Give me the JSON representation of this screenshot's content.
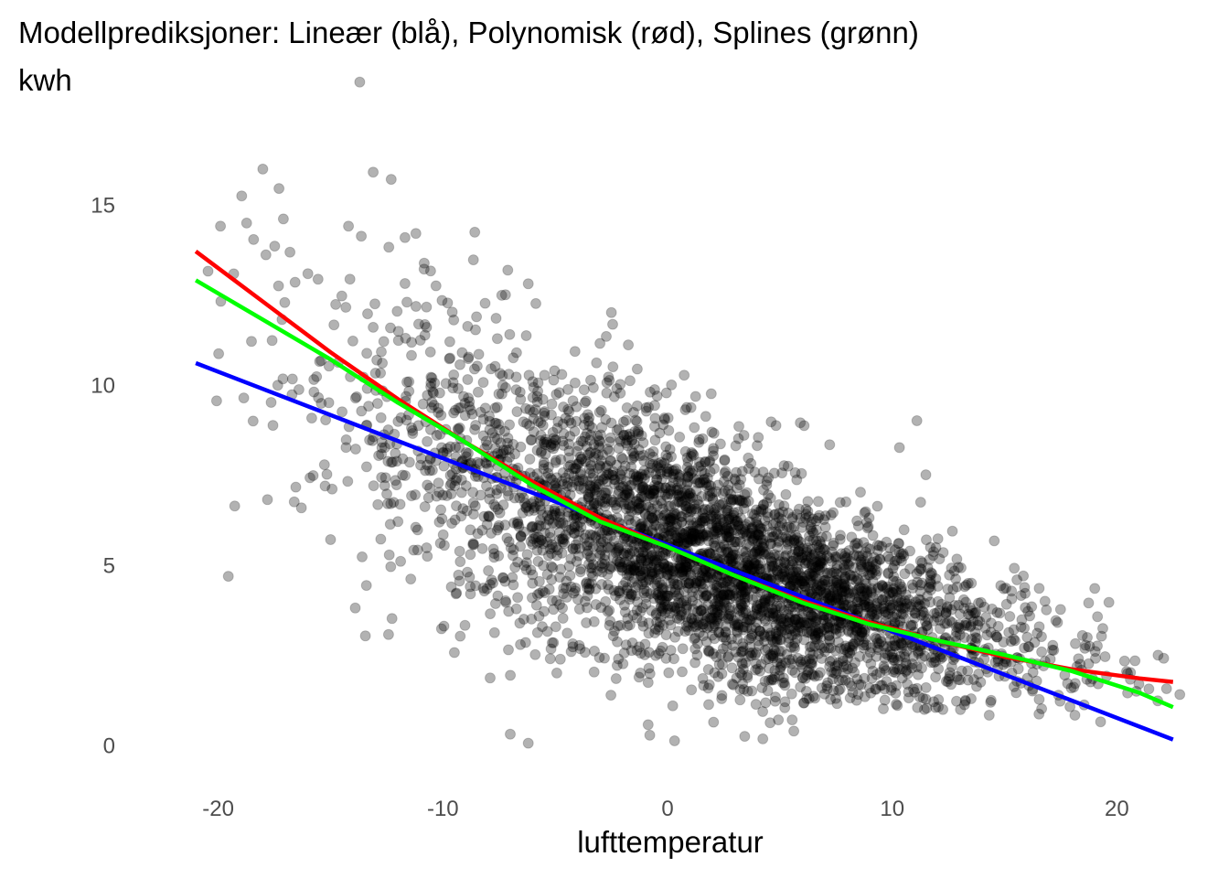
{
  "chart_data": {
    "type": "scatter",
    "title": "Modellprediksjoner: Lineær (blå), Polynomisk (rød), Splines (grønn)",
    "xlabel": "lufttemperatur",
    "ylabel": "kwh",
    "xlim": [
      -23.2,
      23.2
    ],
    "ylim": [
      -0.9,
      18.9
    ],
    "x_ticks": [
      -20,
      -10,
      0,
      10,
      20
    ],
    "y_ticks": [
      0,
      5,
      10,
      15
    ],
    "grid": false,
    "point_color": "#000000",
    "point_alpha": 0.3,
    "scatter_notable_points": [
      {
        "x": -13.7,
        "y": 18.4
      },
      {
        "x": -13.1,
        "y": 15.9
      },
      {
        "x": -12.3,
        "y": 15.7
      },
      {
        "x": -14.2,
        "y": 14.4
      },
      {
        "x": -17.1,
        "y": 14.6
      },
      {
        "x": -19.9,
        "y": 14.4
      },
      {
        "x": -11.2,
        "y": 14.2
      },
      {
        "x": -15.0,
        "y": 5.7
      },
      {
        "x": -13.9,
        "y": 3.8
      },
      {
        "x": -12.0,
        "y": 6.2
      },
      {
        "x": -7.0,
        "y": 0.3
      },
      {
        "x": -6.2,
        "y": 0.05
      },
      {
        "x": -6.2,
        "y": 12.8
      },
      {
        "x": -2.5,
        "y": 12.0
      },
      {
        "x": 11.1,
        "y": 9.0
      },
      {
        "x": 11.5,
        "y": 7.5
      },
      {
        "x": 22.8,
        "y": 1.4
      }
    ],
    "point_cloud": {
      "x_range": [
        -21,
        22.8
      ],
      "fit": "linear",
      "slope": -0.238,
      "intercept": 5.55,
      "spread": 1.6,
      "count": 4000
    },
    "series": [
      {
        "name": "Lineær",
        "color": "#0000ff",
        "x": [
          -21,
          22.5
        ],
        "y": [
          10.6,
          0.15
        ]
      },
      {
        "name": "Polynomisk",
        "color": "#ff0000",
        "x": [
          -21,
          -18,
          -15,
          -12,
          -9,
          -6,
          -3,
          0,
          3,
          6,
          9,
          12,
          15,
          18,
          21,
          22.5
        ],
        "y": [
          13.7,
          12.3,
          10.9,
          9.6,
          8.4,
          7.3,
          6.3,
          5.5,
          4.7,
          4.0,
          3.4,
          2.9,
          2.45,
          2.1,
          1.85,
          1.75
        ]
      },
      {
        "name": "Splines",
        "color": "#00ff00",
        "x": [
          -21,
          -18,
          -15,
          -12,
          -9,
          -6,
          -3,
          0,
          3,
          6,
          9,
          12,
          15,
          18,
          21,
          22.5
        ],
        "y": [
          12.9,
          11.8,
          10.7,
          9.5,
          8.4,
          7.2,
          6.2,
          5.5,
          4.7,
          3.95,
          3.35,
          2.9,
          2.5,
          2.05,
          1.45,
          1.05
        ]
      }
    ]
  }
}
